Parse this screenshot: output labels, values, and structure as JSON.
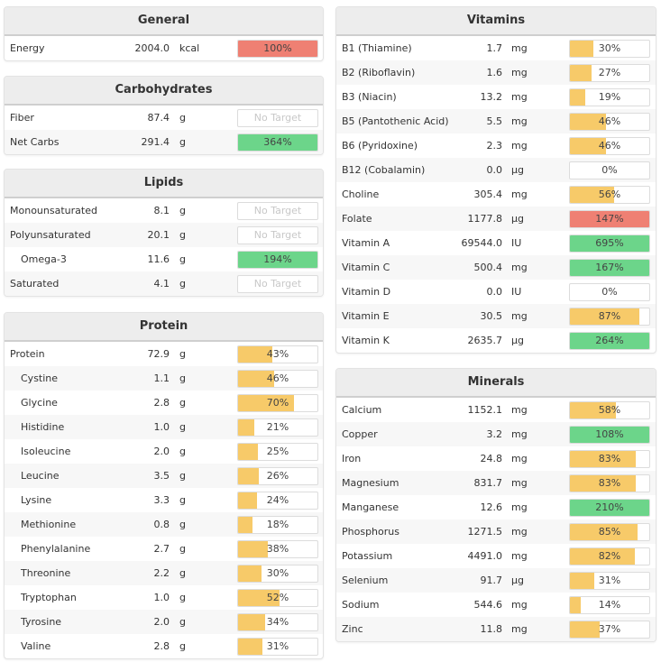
{
  "colors": {
    "low": "#f7ca69",
    "ok": "#6cd58a",
    "over": "#ef8073"
  },
  "panels": [
    {
      "id": "general",
      "title": "General",
      "rows": [
        {
          "name": "Energy",
          "value": "2004.0",
          "unit": "kcal",
          "pct": 100,
          "label": "100%",
          "status": "over"
        }
      ]
    },
    {
      "id": "carbohydrates",
      "title": "Carbohydrates",
      "rows": [
        {
          "name": "Fiber",
          "value": "87.4",
          "unit": "g",
          "pct": 0,
          "label": "No Target",
          "status": "none"
        },
        {
          "name": "Net Carbs",
          "value": "291.4",
          "unit": "g",
          "pct": 364,
          "label": "364%",
          "status": "ok"
        }
      ]
    },
    {
      "id": "lipids",
      "title": "Lipids",
      "rows": [
        {
          "name": "Monounsaturated",
          "value": "8.1",
          "unit": "g",
          "pct": 0,
          "label": "No Target",
          "status": "none"
        },
        {
          "name": "Polyunsaturated",
          "value": "20.1",
          "unit": "g",
          "pct": 0,
          "label": "No Target",
          "status": "none"
        },
        {
          "name": "Omega-3",
          "value": "11.6",
          "unit": "g",
          "pct": 194,
          "label": "194%",
          "status": "ok",
          "sub": true
        },
        {
          "name": "Saturated",
          "value": "4.1",
          "unit": "g",
          "pct": 0,
          "label": "No Target",
          "status": "none"
        }
      ]
    },
    {
      "id": "protein",
      "title": "Protein",
      "rows": [
        {
          "name": "Protein",
          "value": "72.9",
          "unit": "g",
          "pct": 43,
          "label": "43%",
          "status": "low"
        },
        {
          "name": "Cystine",
          "value": "1.1",
          "unit": "g",
          "pct": 46,
          "label": "46%",
          "status": "low",
          "sub": true
        },
        {
          "name": "Glycine",
          "value": "2.8",
          "unit": "g",
          "pct": 70,
          "label": "70%",
          "status": "low",
          "sub": true
        },
        {
          "name": "Histidine",
          "value": "1.0",
          "unit": "g",
          "pct": 21,
          "label": "21%",
          "status": "low",
          "sub": true
        },
        {
          "name": "Isoleucine",
          "value": "2.0",
          "unit": "g",
          "pct": 25,
          "label": "25%",
          "status": "low",
          "sub": true
        },
        {
          "name": "Leucine",
          "value": "3.5",
          "unit": "g",
          "pct": 26,
          "label": "26%",
          "status": "low",
          "sub": true
        },
        {
          "name": "Lysine",
          "value": "3.3",
          "unit": "g",
          "pct": 24,
          "label": "24%",
          "status": "low",
          "sub": true
        },
        {
          "name": "Methionine",
          "value": "0.8",
          "unit": "g",
          "pct": 18,
          "label": "18%",
          "status": "low",
          "sub": true
        },
        {
          "name": "Phenylalanine",
          "value": "2.7",
          "unit": "g",
          "pct": 38,
          "label": "38%",
          "status": "low",
          "sub": true
        },
        {
          "name": "Threonine",
          "value": "2.2",
          "unit": "g",
          "pct": 30,
          "label": "30%",
          "status": "low",
          "sub": true
        },
        {
          "name": "Tryptophan",
          "value": "1.0",
          "unit": "g",
          "pct": 52,
          "label": "52%",
          "status": "low",
          "sub": true
        },
        {
          "name": "Tyrosine",
          "value": "2.0",
          "unit": "g",
          "pct": 34,
          "label": "34%",
          "status": "low",
          "sub": true
        },
        {
          "name": "Valine",
          "value": "2.8",
          "unit": "g",
          "pct": 31,
          "label": "31%",
          "status": "low",
          "sub": true
        }
      ]
    },
    {
      "id": "vitamins",
      "title": "Vitamins",
      "rows": [
        {
          "name": "B1 (Thiamine)",
          "value": "1.7",
          "unit": "mg",
          "pct": 30,
          "label": "30%",
          "status": "low"
        },
        {
          "name": "B2 (Riboflavin)",
          "value": "1.6",
          "unit": "mg",
          "pct": 27,
          "label": "27%",
          "status": "low"
        },
        {
          "name": "B3 (Niacin)",
          "value": "13.2",
          "unit": "mg",
          "pct": 19,
          "label": "19%",
          "status": "low"
        },
        {
          "name": "B5 (Pantothenic Acid)",
          "value": "5.5",
          "unit": "mg",
          "pct": 46,
          "label": "46%",
          "status": "low"
        },
        {
          "name": "B6 (Pyridoxine)",
          "value": "2.3",
          "unit": "mg",
          "pct": 46,
          "label": "46%",
          "status": "low"
        },
        {
          "name": "B12 (Cobalamin)",
          "value": "0.0",
          "unit": "µg",
          "pct": 0,
          "label": "0%",
          "status": "low"
        },
        {
          "name": "Choline",
          "value": "305.4",
          "unit": "mg",
          "pct": 56,
          "label": "56%",
          "status": "low"
        },
        {
          "name": "Folate",
          "value": "1177.8",
          "unit": "µg",
          "pct": 147,
          "label": "147%",
          "status": "over"
        },
        {
          "name": "Vitamin A",
          "value": "69544.0",
          "unit": "IU",
          "pct": 695,
          "label": "695%",
          "status": "ok"
        },
        {
          "name": "Vitamin C",
          "value": "500.4",
          "unit": "mg",
          "pct": 167,
          "label": "167%",
          "status": "ok"
        },
        {
          "name": "Vitamin D",
          "value": "0.0",
          "unit": "IU",
          "pct": 0,
          "label": "0%",
          "status": "low"
        },
        {
          "name": "Vitamin E",
          "value": "30.5",
          "unit": "mg",
          "pct": 87,
          "label": "87%",
          "status": "low"
        },
        {
          "name": "Vitamin K",
          "value": "2635.7",
          "unit": "µg",
          "pct": 264,
          "label": "264%",
          "status": "ok"
        }
      ]
    },
    {
      "id": "minerals",
      "title": "Minerals",
      "rows": [
        {
          "name": "Calcium",
          "value": "1152.1",
          "unit": "mg",
          "pct": 58,
          "label": "58%",
          "status": "low"
        },
        {
          "name": "Copper",
          "value": "3.2",
          "unit": "mg",
          "pct": 108,
          "label": "108%",
          "status": "ok"
        },
        {
          "name": "Iron",
          "value": "24.8",
          "unit": "mg",
          "pct": 83,
          "label": "83%",
          "status": "low"
        },
        {
          "name": "Magnesium",
          "value": "831.7",
          "unit": "mg",
          "pct": 83,
          "label": "83%",
          "status": "low"
        },
        {
          "name": "Manganese",
          "value": "12.6",
          "unit": "mg",
          "pct": 210,
          "label": "210%",
          "status": "ok"
        },
        {
          "name": "Phosphorus",
          "value": "1271.5",
          "unit": "mg",
          "pct": 85,
          "label": "85%",
          "status": "low"
        },
        {
          "name": "Potassium",
          "value": "4491.0",
          "unit": "mg",
          "pct": 82,
          "label": "82%",
          "status": "low"
        },
        {
          "name": "Selenium",
          "value": "91.7",
          "unit": "µg",
          "pct": 31,
          "label": "31%",
          "status": "low"
        },
        {
          "name": "Sodium",
          "value": "544.6",
          "unit": "mg",
          "pct": 14,
          "label": "14%",
          "status": "low"
        },
        {
          "name": "Zinc",
          "value": "11.8",
          "unit": "mg",
          "pct": 37,
          "label": "37%",
          "status": "low"
        }
      ]
    }
  ]
}
